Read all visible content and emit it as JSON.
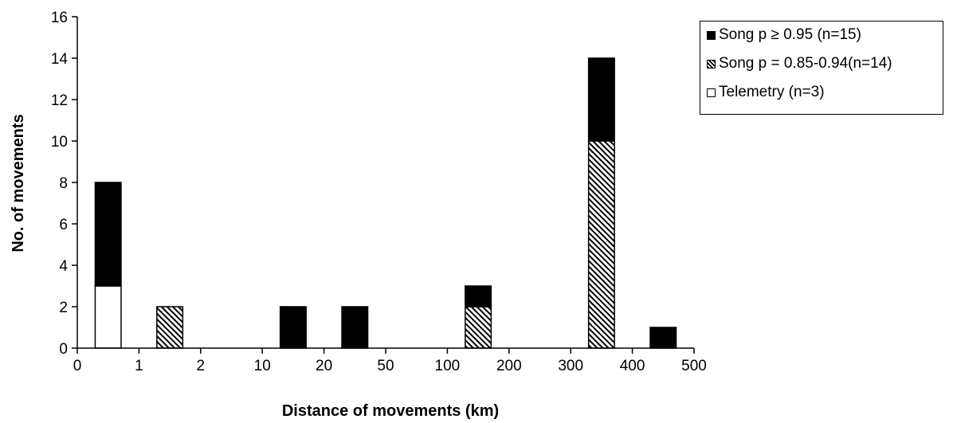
{
  "chart_data": {
    "type": "bar",
    "stacked": true,
    "xlabel": "Distance of movements (km)",
    "ylabel": "No. of movements",
    "ylim": [
      0,
      16
    ],
    "yticks": [
      0,
      2,
      4,
      6,
      8,
      10,
      12,
      14,
      16
    ],
    "xticks": [
      "0",
      "1",
      "2",
      "10",
      "20",
      "50",
      "100",
      "200",
      "300",
      "400",
      "500"
    ],
    "bars": [
      {
        "interval": [
          "0",
          "1"
        ],
        "telemetry": 3,
        "song_085_094": 0,
        "song_095": 5
      },
      {
        "interval": [
          "1",
          "2"
        ],
        "telemetry": 0,
        "song_085_094": 2,
        "song_095": 0
      },
      {
        "interval": [
          "10",
          "20"
        ],
        "telemetry": 0,
        "song_085_094": 0,
        "song_095": 2
      },
      {
        "interval": [
          "20",
          "50"
        ],
        "telemetry": 0,
        "song_085_094": 0,
        "song_095": 2
      },
      {
        "interval": [
          "100",
          "200"
        ],
        "telemetry": 0,
        "song_085_094": 2,
        "song_095": 1
      },
      {
        "interval": [
          "300",
          "400"
        ],
        "telemetry": 0,
        "song_085_094": 10,
        "song_095": 4
      },
      {
        "interval": [
          "400",
          "500"
        ],
        "telemetry": 0,
        "song_085_094": 0,
        "song_095": 1
      }
    ],
    "legend": [
      {
        "key": "song_095",
        "label": "Song  p ≥ 0.95 (n=15)",
        "color": "#000000",
        "pattern": "solid"
      },
      {
        "key": "song_085_094",
        "label": "Song  p = 0.85-0.94(n=14)",
        "color": "#000000",
        "pattern": "hatch"
      },
      {
        "key": "telemetry",
        "label": "Telemetry (n=3)",
        "color": "#ffffff",
        "pattern": "open"
      }
    ],
    "legend_position": "top-right",
    "grid": false
  }
}
